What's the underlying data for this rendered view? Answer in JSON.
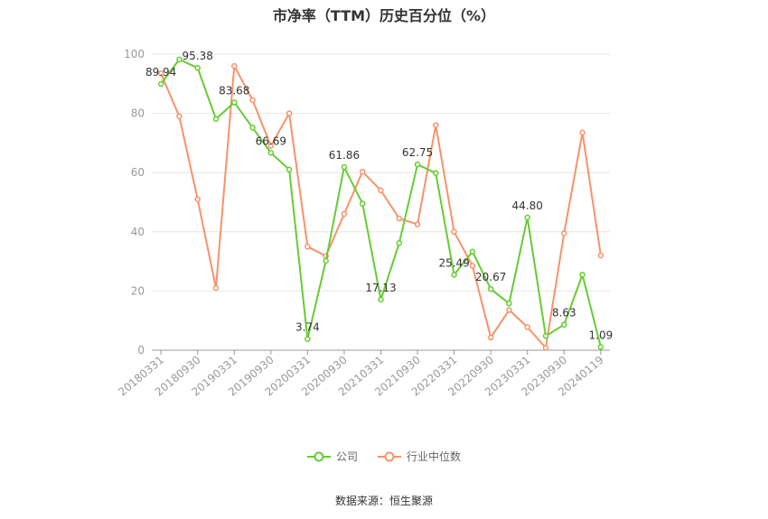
{
  "chart_data": {
    "type": "line",
    "title": "市净率（TTM）历史百分位（%）",
    "x": [
      "20180331",
      "20180630",
      "20180930",
      "20181231",
      "20190331",
      "20190630",
      "20190930",
      "20191231",
      "20200331",
      "20200630",
      "20200930",
      "20201231",
      "20210331",
      "20210630",
      "20210930",
      "20211231",
      "20220331",
      "20220630",
      "20220930",
      "20221231",
      "20230331",
      "20230630",
      "20230930",
      "20231231",
      "20240119"
    ],
    "x_tick_labels": [
      "20180331",
      "20180930",
      "20190331",
      "20190930",
      "20200331",
      "20200930",
      "20210331",
      "20210930",
      "20220331",
      "20220930",
      "20230331",
      "20230930",
      "20240119"
    ],
    "ylim": [
      0,
      100
    ],
    "y_ticks": [
      0,
      20,
      40,
      60,
      80,
      100
    ],
    "grid": true,
    "legend_position": "bottom",
    "series": [
      {
        "name": "公司",
        "color": "#66cc33",
        "values": [
          89.94,
          98.2,
          95.38,
          78.1,
          83.68,
          75.2,
          66.69,
          61.0,
          3.74,
          30.2,
          61.86,
          49.5,
          17.13,
          36.2,
          62.75,
          59.8,
          25.49,
          33.3,
          20.67,
          15.8,
          44.8,
          4.8,
          8.63,
          25.5,
          1.09
        ],
        "labels": {
          "0": "89.94",
          "2": "95.38",
          "4": "83.68",
          "6": "66.69",
          "8": "3.74",
          "10": "61.86",
          "12": "17.13",
          "14": "62.75",
          "16": "25.49",
          "18": "20.67",
          "20": "44.80",
          "22": "8.63",
          "24": "1.09"
        }
      },
      {
        "name": "行业中位数",
        "color": "#f5936a",
        "values": [
          93.5,
          79.0,
          51.0,
          21.0,
          96.0,
          84.5,
          69.0,
          80.0,
          35.0,
          31.8,
          46.0,
          60.3,
          54.0,
          44.5,
          42.5,
          76.0,
          40.0,
          28.5,
          4.3,
          13.6,
          7.8,
          0.8,
          39.5,
          73.5,
          32.0
        ]
      }
    ]
  },
  "source_text": "数据来源：恒生聚源"
}
